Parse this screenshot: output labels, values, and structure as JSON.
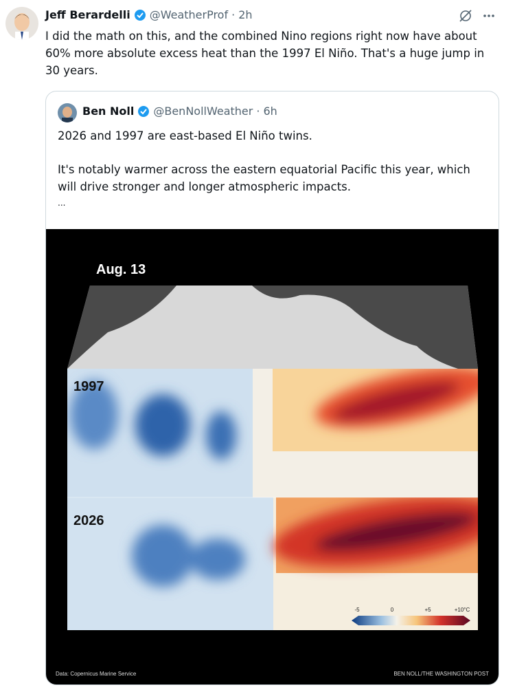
{
  "post": {
    "author": "Jeff Berardelli",
    "handle": "@WeatherProf",
    "separator": "·",
    "time": "2h",
    "text": "I did the math on this, and the combined Nino regions right now have about 60% more absolute excess heat than the 1997 El Niño. That's a huge jump in 30 years.",
    "quote": {
      "author": "Ben Noll",
      "handle": "@BenNollWeather",
      "separator": "·",
      "time": "6h",
      "paragraphs": [
        "2026 and 1997 are east-based El Niño twins.",
        "It's notably warmer across the eastern equatorial Pacific this year, which will drive stronger and longer atmospheric impacts.",
        "..."
      ],
      "image": {
        "date": "Aug. 13",
        "panels": [
          "1997",
          "2026"
        ],
        "legend": [
          "-5",
          "0",
          "+5",
          "+10°C"
        ],
        "source": "Data: Copernicus Marine Service",
        "credit": "BEN NOLL/THE WASHINGTON POST"
      }
    }
  }
}
